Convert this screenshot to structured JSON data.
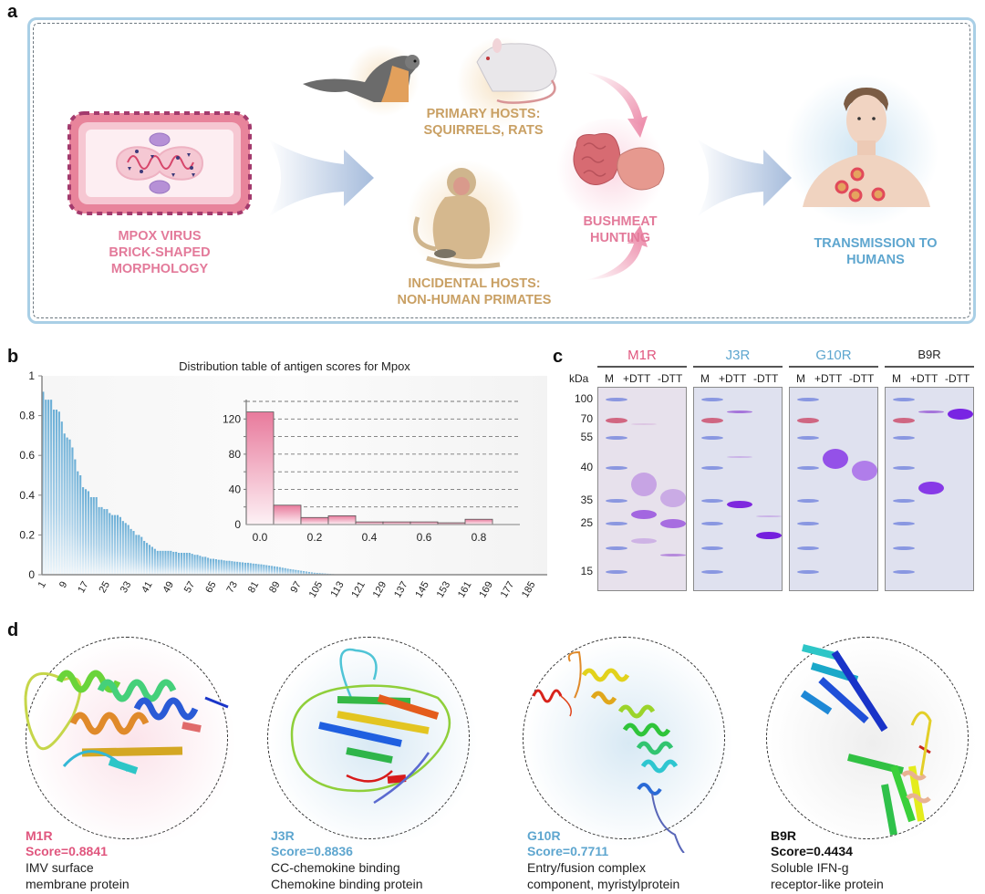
{
  "panels": {
    "a": {
      "letter": "a",
      "virus_label": [
        "MPOX VIRUS",
        "BRICK-SHAPED",
        "MORPHOLOGY"
      ],
      "primary_hosts_label": [
        "PRIMARY HOSTS:",
        "SQUIRRELS, RATS"
      ],
      "incidental_hosts_label": [
        "INCIDENTAL HOSTS:",
        "NON-HUMAN PRIMATES"
      ],
      "bushmeat_label": "BUSHMEAT HUNTING",
      "transmission_label": [
        "TRANSMISSION TO",
        "HUMANS"
      ],
      "icons": [
        "virus-icon",
        "squirrel-icon",
        "rat-icon",
        "monkey-icon",
        "organ-icon",
        "human-icon",
        "arrow-icon"
      ]
    },
    "b": {
      "letter": "b"
    },
    "c": {
      "letter": "c",
      "unit_label": "kDa",
      "ladder": [
        "100",
        "70",
        "55",
        "40",
        "35",
        "25",
        "15"
      ],
      "gels": [
        {
          "name": "M1R",
          "color": "#e0567e",
          "lanes": [
            "M",
            "+DTT",
            "-DTT"
          ]
        },
        {
          "name": "J3R",
          "color": "#5ea6cf",
          "lanes": [
            "M",
            "+DTT",
            "-DTT"
          ]
        },
        {
          "name": "G10R",
          "color": "#5ea6cf",
          "lanes": [
            "M",
            "+DTT",
            "-DTT"
          ]
        },
        {
          "name": "B9R",
          "color": "#222222",
          "lanes": [
            "M",
            "+DTT",
            "-DTT"
          ]
        }
      ]
    },
    "d": {
      "letter": "d",
      "structures": [
        {
          "name": "M1R",
          "score": "Score=0.8841",
          "color": "#e0567e",
          "desc": [
            "IMV surface",
            "membrane protein"
          ]
        },
        {
          "name": "J3R",
          "score": "Score=0.8836",
          "color": "#5ea6cf",
          "desc": [
            "CC-chemokine binding",
            "Chemokine binding protein"
          ]
        },
        {
          "name": "G10R",
          "score": "Score=0.7711",
          "color": "#5ea6cf",
          "desc": [
            "Entry/fusion complex",
            "component, myristylprotein"
          ]
        },
        {
          "name": "B9R",
          "score": "Score=0.4434",
          "color": "#111111",
          "desc": [
            "Soluble IFN-g",
            "receptor-like protein"
          ]
        }
      ]
    }
  },
  "chart_data": [
    {
      "type": "bar",
      "title": "Distribution table of antigen scores for Mpox",
      "xlabel": "",
      "ylabel": "",
      "ylim": [
        0,
        1
      ],
      "yticks": [
        "0",
        "0.2",
        "0.4",
        "0.6",
        "0.8",
        "1"
      ],
      "xticks": [
        "1",
        "9",
        "17",
        "25",
        "33",
        "41",
        "49",
        "57",
        "65",
        "73",
        "81",
        "89",
        "97",
        "105",
        "113",
        "121",
        "129",
        "137",
        "145",
        "153",
        "161",
        "169",
        "177",
        "185"
      ],
      "n_categories": 190,
      "color": "#6aaed6",
      "values": [
        0.92,
        0.88,
        0.88,
        0.88,
        0.83,
        0.83,
        0.82,
        0.77,
        0.71,
        0.69,
        0.68,
        0.64,
        0.58,
        0.52,
        0.5,
        0.44,
        0.43,
        0.42,
        0.39,
        0.39,
        0.39,
        0.34,
        0.34,
        0.33,
        0.33,
        0.31,
        0.3,
        0.3,
        0.3,
        0.29,
        0.27,
        0.26,
        0.25,
        0.23,
        0.22,
        0.2,
        0.2,
        0.19,
        0.17,
        0.16,
        0.15,
        0.14,
        0.13,
        0.12,
        0.12,
        0.12,
        0.12,
        0.12,
        0.12,
        0.115,
        0.115,
        0.11,
        0.11,
        0.11,
        0.11,
        0.11,
        0.105,
        0.1,
        0.1,
        0.095,
        0.09,
        0.09,
        0.085,
        0.08,
        0.08,
        0.078,
        0.075,
        0.075,
        0.072,
        0.07,
        0.07,
        0.068,
        0.066,
        0.065,
        0.063,
        0.062,
        0.06,
        0.06,
        0.058,
        0.056,
        0.055,
        0.053,
        0.052,
        0.05,
        0.048,
        0.046,
        0.044,
        0.042,
        0.04,
        0.038,
        0.035,
        0.033,
        0.03,
        0.028,
        0.026,
        0.024,
        0.022,
        0.02,
        0.018,
        0.016,
        0.014,
        0.012,
        0.01,
        0.009,
        0.008,
        0.007,
        0.006,
        0.005,
        0.004,
        0.003,
        0.002,
        0.002,
        0.001,
        0.001,
        0.001,
        0,
        0,
        0,
        0,
        0,
        0,
        0,
        0,
        0,
        0,
        0,
        0,
        0,
        0,
        0,
        0,
        0,
        0,
        0,
        0,
        0,
        0,
        0,
        0,
        0,
        0,
        0,
        0,
        0,
        0,
        0,
        0,
        0,
        0,
        0,
        0,
        0,
        0,
        0,
        0,
        0,
        0,
        0,
        0,
        0,
        0,
        0,
        0,
        0,
        0,
        0,
        0,
        0,
        0,
        0,
        0,
        0,
        0,
        0,
        0,
        0,
        0,
        0,
        0,
        0,
        0,
        0,
        0,
        0,
        0,
        0,
        0,
        0,
        0,
        0,
        0,
        0,
        0,
        0,
        0,
        0
      ],
      "grid": false,
      "legend": "none"
    },
    {
      "type": "bar",
      "title": "",
      "subtitle": "inset histogram",
      "categories": [
        "0.0",
        "0.1",
        "0.2",
        "0.3",
        "0.4",
        "0.5",
        "0.6",
        "0.7",
        "0.8"
      ],
      "xticks": [
        "0.0",
        "0.2",
        "0.4",
        "0.6",
        "0.8"
      ],
      "yticks": [
        "0",
        "40",
        "80",
        "120"
      ],
      "values": [
        128,
        22,
        8,
        10,
        3,
        3,
        3,
        2,
        6
      ],
      "xlim": [
        -0.05,
        0.95
      ],
      "ylim": [
        0,
        140
      ],
      "color": "#e87a9c",
      "grid": true,
      "legend": "none"
    }
  ]
}
